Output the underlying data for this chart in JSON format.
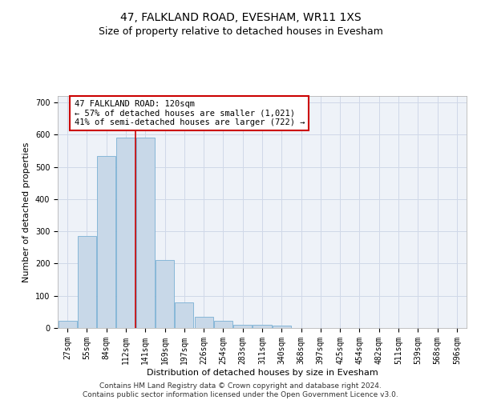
{
  "title": "47, FALKLAND ROAD, EVESHAM, WR11 1XS",
  "subtitle": "Size of property relative to detached houses in Evesham",
  "xlabel": "Distribution of detached houses by size in Evesham",
  "ylabel": "Number of detached properties",
  "bar_labels": [
    "27sqm",
    "55sqm",
    "84sqm",
    "112sqm",
    "141sqm",
    "169sqm",
    "197sqm",
    "226sqm",
    "254sqm",
    "283sqm",
    "311sqm",
    "340sqm",
    "368sqm",
    "397sqm",
    "425sqm",
    "454sqm",
    "482sqm",
    "511sqm",
    "539sqm",
    "568sqm",
    "596sqm"
  ],
  "bar_values": [
    22,
    285,
    533,
    590,
    590,
    212,
    79,
    35,
    22,
    10,
    10,
    8,
    0,
    0,
    0,
    0,
    0,
    0,
    0,
    0,
    0
  ],
  "bar_color": "#c8d8e8",
  "bar_edgecolor": "#7ab0d4",
  "vline_x": 3.5,
  "vline_color": "#cc0000",
  "annotation_text_line1": "47 FALKLAND ROAD: 120sqm",
  "annotation_text_line2": "← 57% of detached houses are smaller (1,021)",
  "annotation_text_line3": "41% of semi-detached houses are larger (722) →",
  "annotation_box_edgecolor": "#cc0000",
  "annotation_fontsize": 7.5,
  "ylim": [
    0,
    720
  ],
  "yticks": [
    0,
    100,
    200,
    300,
    400,
    500,
    600,
    700
  ],
  "grid_color": "#d0d8e8",
  "background_color": "#eef2f8",
  "footer_text": "Contains HM Land Registry data © Crown copyright and database right 2024.\nContains public sector information licensed under the Open Government Licence v3.0.",
  "title_fontsize": 10,
  "subtitle_fontsize": 9,
  "xlabel_fontsize": 8,
  "ylabel_fontsize": 8,
  "footer_fontsize": 6.5,
  "tick_fontsize": 7
}
